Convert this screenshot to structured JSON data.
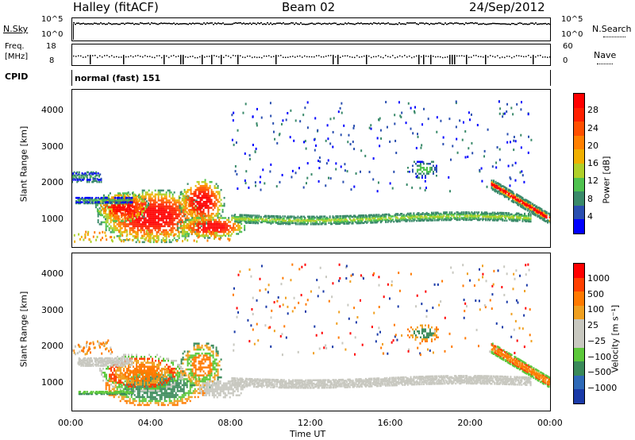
{
  "header": {
    "station": "Halley (fitACF)",
    "beam": "Beam 02",
    "date": "24/Sep/2012"
  },
  "noise_panel": {
    "left_label": "N.Sky",
    "right_label": "N.Search",
    "ticks_left": [
      "10^5",
      "10^0"
    ],
    "ticks_right": [
      "10^5",
      "10^0"
    ]
  },
  "freq_panel": {
    "left_label_line1": "Freq.",
    "left_label_line2": "[MHz]",
    "right_label": "Nave",
    "ticks_left": [
      "18",
      "8"
    ],
    "ticks_right": [
      "60",
      "0"
    ]
  },
  "cpid_panel": {
    "label": "CPID",
    "value": "normal (fast) 151"
  },
  "chart_data": [
    {
      "type": "heatmap",
      "name": "power",
      "ylabel": "Slant Range [km]",
      "ylim": [
        200,
        4600
      ],
      "yticks": [
        "1000",
        "2000",
        "3000",
        "4000"
      ],
      "xticks": [
        "00:00",
        "04:00",
        "08:00",
        "12:00",
        "16:00",
        "20:00",
        "00:00"
      ],
      "colorbar_label": "Power [dB]",
      "colorbar_ticks": [
        "4",
        "8",
        "12",
        "16",
        "20",
        "24",
        "28"
      ],
      "colorscale": [
        "#0000ff",
        "#2a4fb0",
        "#3a8a6a",
        "#4fc24f",
        "#b0d02a",
        "#f0b000",
        "#ff8000",
        "#ff5000",
        "#ff2000",
        "#ff0000"
      ]
    },
    {
      "type": "heatmap",
      "name": "velocity",
      "ylabel": "Slant Range [km]",
      "ylim": [
        200,
        4600
      ],
      "yticks": [
        "1000",
        "2000",
        "3000",
        "4000"
      ],
      "xticks": [
        "00:00",
        "04:00",
        "08:00",
        "12:00",
        "16:00",
        "20:00",
        "00:00"
      ],
      "xlabel": "Time UT",
      "colorbar_label": "Velocity [m s⁻¹]",
      "colorbar_ticks": [
        "1000",
        "500",
        "100",
        "25",
        "−25",
        "−100",
        "−500",
        "−1000"
      ],
      "colorscale": [
        "#1a3aa8",
        "#2e6ab8",
        "#3a8a5a",
        "#5cc83a",
        "#c8c8c0",
        "#c8c8c0",
        "#f0a020",
        "#ff7a00",
        "#ff4000",
        "#ff0000"
      ]
    }
  ]
}
